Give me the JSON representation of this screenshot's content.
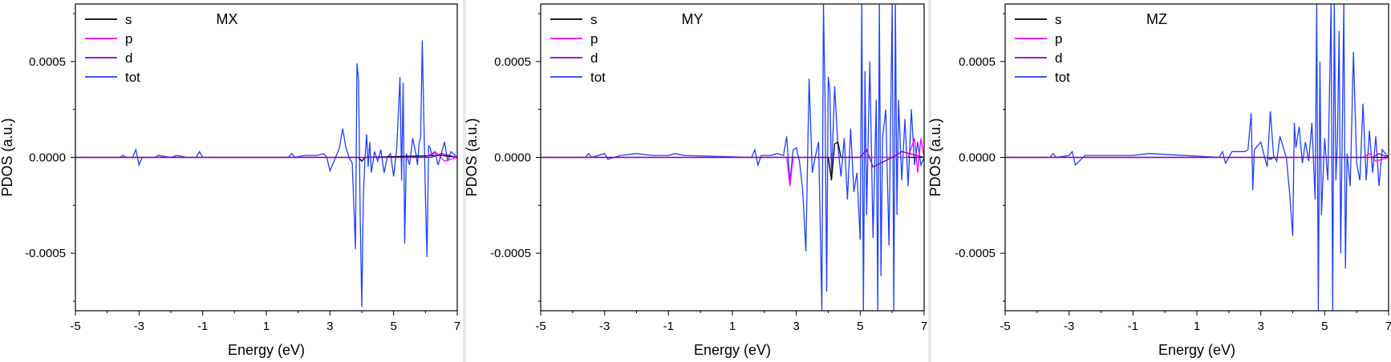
{
  "chart_data": [
    {
      "type": "line",
      "title": "MX",
      "xlabel": "Energy (eV)",
      "ylabel": "PDOS (a.u.)",
      "xlim": [
        -5,
        7
      ],
      "ylim": [
        -0.0008,
        0.0008
      ],
      "xticks": [
        -5,
        -3,
        -1,
        1,
        3,
        5,
        7
      ],
      "xtick_labels": [
        "-5",
        "-3",
        "-1",
        "1",
        "3",
        "5",
        "7"
      ],
      "yticks": [
        0.0005,
        0.0,
        -0.0005
      ],
      "ytick_labels": [
        "0.0005",
        "0.0000",
        "-0.0005"
      ],
      "legend_position": "top-left",
      "series": [
        {
          "name": "s",
          "color": "#000000",
          "x": [
            -5,
            3.9,
            4.0,
            4.1,
            6.5,
            7
          ],
          "y": [
            0,
            0,
            -2e-05,
            0,
            1e-05,
            0
          ]
        },
        {
          "name": "p",
          "color": "#ff00ff",
          "x": [
            -5,
            6.0,
            6.3,
            6.6,
            7
          ],
          "y": [
            0,
            0,
            3e-05,
            -2e-05,
            0
          ]
        },
        {
          "name": "d",
          "color": "#8000c0",
          "x": [
            -5,
            6.2,
            6.5,
            7
          ],
          "y": [
            0,
            0,
            2e-05,
            0
          ]
        },
        {
          "name": "tot",
          "color": "#1f3fff",
          "x": [
            -5,
            -3.6,
            -3.5,
            -3.4,
            -3.2,
            -3.1,
            -3.0,
            -2.9,
            -2.5,
            -2.4,
            -2.0,
            -1.8,
            -1.5,
            -1.2,
            -1.1,
            -1.0,
            -0.9,
            1.7,
            1.8,
            1.9,
            2.2,
            2.4,
            2.6,
            2.8,
            2.9,
            3.0,
            3.2,
            3.3,
            3.4,
            3.5,
            3.6,
            3.7,
            3.8,
            3.85,
            3.9,
            3.95,
            4.0,
            4.05,
            4.1,
            4.15,
            4.2,
            4.25,
            4.3,
            4.4,
            4.5,
            4.6,
            4.7,
            4.8,
            4.9,
            5.0,
            5.1,
            5.2,
            5.25,
            5.3,
            5.35,
            5.4,
            5.5,
            5.6,
            5.7,
            5.75,
            5.8,
            5.85,
            5.9,
            6.0,
            6.05,
            6.1,
            6.15,
            6.2,
            6.3,
            6.4,
            6.5,
            6.6,
            6.7,
            6.8,
            7
          ],
          "y": [
            0,
            0,
            1e-05,
            0,
            0,
            4e-05,
            -4e-05,
            0,
            0,
            1e-05,
            0,
            1e-05,
            0,
            0,
            3e-05,
            0,
            0,
            0,
            2e-05,
            0,
            1e-05,
            1e-05,
            1e-05,
            2e-05,
            0,
            -7e-05,
            1e-05,
            5e-05,
            0.00015,
            5e-05,
            0,
            -3e-05,
            -0.00048,
            0.00049,
            0.0004,
            -0.0003,
            -0.00078,
            -0.0002,
            0,
            0.00012,
            -5e-05,
            8e-05,
            -8e-05,
            3e-05,
            -2e-05,
            4e-05,
            -8e-05,
            0,
            2e-05,
            -0.0001,
            5e-05,
            0.00042,
            -0.00012,
            0.00039,
            -0.00045,
            2e-05,
            -4e-05,
            0.0001,
            2e-05,
            -4e-05,
            7e-05,
            0.00011,
            0.00061,
            -0.0002,
            -0.00052,
            6e-05,
            5e-05,
            1e-05,
            3e-05,
            -4e-05,
            2e-05,
            8e-05,
            -2e-05,
            3e-05,
            0
          ]
        }
      ]
    },
    {
      "type": "line",
      "title": "MY",
      "xlabel": "Energy (eV)",
      "ylabel": "PDOS (a.u.)",
      "xlim": [
        -5,
        7
      ],
      "ylim": [
        -0.0008,
        0.0008
      ],
      "xticks": [
        -5,
        -3,
        -1,
        1,
        3,
        5,
        7
      ],
      "xtick_labels": [
        "-5",
        "-3",
        "-1",
        "1",
        "3",
        "5",
        "7"
      ],
      "yticks": [
        0.0005,
        0.0,
        -0.0005
      ],
      "ytick_labels": [
        "0.0005",
        "0.0000",
        "-0.0005"
      ],
      "legend_position": "top-left",
      "series": [
        {
          "name": "s",
          "color": "#000000",
          "x": [
            -5,
            4.0,
            4.1,
            4.2,
            4.3,
            4.4,
            7
          ],
          "y": [
            0,
            0,
            -0.00012,
            7e-05,
            8e-05,
            0,
            0
          ]
        },
        {
          "name": "p",
          "color": "#ff00ff",
          "x": [
            -5,
            2.7,
            2.8,
            2.9,
            6.5,
            6.7,
            6.8,
            6.9,
            7
          ],
          "y": [
            0,
            0,
            -0.00015,
            0,
            0,
            0.0001,
            -8e-05,
            0.0001,
            0
          ]
        },
        {
          "name": "d",
          "color": "#8000c0",
          "x": [
            -5,
            5.0,
            5.2,
            5.4,
            6.0,
            6.3,
            7
          ],
          "y": [
            0,
            0,
            4e-05,
            -5e-05,
            0,
            3e-05,
            0
          ]
        },
        {
          "name": "tot",
          "color": "#1f3fff",
          "x": [
            -5,
            -3.6,
            -3.5,
            -3.4,
            -3.0,
            -2.9,
            -2.5,
            -2.0,
            -1.5,
            -1.0,
            -0.8,
            -0.5,
            1.6,
            1.7,
            1.8,
            1.9,
            2.2,
            2.4,
            2.6,
            2.7,
            2.8,
            2.9,
            3.0,
            3.1,
            3.2,
            3.3,
            3.4,
            3.5,
            3.6,
            3.7,
            3.8,
            3.85,
            3.9,
            3.95,
            4.0,
            4.05,
            4.1,
            4.2,
            4.3,
            4.4,
            4.5,
            4.6,
            4.7,
            4.8,
            4.9,
            5.0,
            5.05,
            5.1,
            5.15,
            5.2,
            5.3,
            5.4,
            5.5,
            5.55,
            5.6,
            5.65,
            5.7,
            5.8,
            5.9,
            6.0,
            6.05,
            6.1,
            6.15,
            6.2,
            6.3,
            6.4,
            6.5,
            6.6,
            6.7,
            6.8,
            6.9,
            7
          ],
          "y": [
            0,
            0,
            2e-05,
            0,
            2e-05,
            -1e-05,
            1e-05,
            2e-05,
            1e-05,
            1e-05,
            2e-05,
            1e-05,
            0,
            4e-05,
            -4e-05,
            1e-05,
            1e-05,
            2e-05,
            1e-05,
            0.00011,
            -0.00013,
            4e-05,
            5e-05,
            -2e-05,
            -0.00017,
            -0.00049,
            0.00041,
            -8e-05,
            1e-05,
            8e-05,
            -0.0008,
            0.0008,
            0.0003,
            -0.0007,
            0.00042,
            0.00035,
            -0.0001,
            0.00037,
            6e-05,
            -0.0001,
            0.0001,
            -0.00022,
            0.00015,
            -0.00018,
            -8e-05,
            -0.00043,
            0.0008,
            -0.0008,
            0.00045,
            -0.0003,
            0.0005,
            -0.00042,
            0.0003,
            -0.0008,
            0.0008,
            -0.00062,
            0.0001,
            0.00025,
            -0.00046,
            0.0008,
            -0.0008,
            0.0008,
            -0.0003,
            0.0003,
            -0.00012,
            0.0002,
            -0.00015,
            0.00025,
            -4e-05,
            8e-05,
            -4e-05,
            0
          ]
        }
      ]
    },
    {
      "type": "line",
      "title": "MZ",
      "xlabel": "Energy (eV)",
      "ylabel": "PDOS (a.u.)",
      "xlim": [
        -5,
        7
      ],
      "ylim": [
        -0.0008,
        0.0008
      ],
      "xticks": [
        -5,
        -3,
        -1,
        1,
        3,
        5,
        7
      ],
      "xtick_labels": [
        "-5",
        "-3",
        "-1",
        "1",
        "3",
        "5",
        "7"
      ],
      "yticks": [
        0.0005,
        0.0,
        -0.0005
      ],
      "ytick_labels": [
        "0.0005",
        "0.0000",
        "-0.0005"
      ],
      "legend_position": "top-left",
      "series": [
        {
          "name": "s",
          "color": "#000000",
          "x": [
            -5,
            3.2,
            3.3,
            3.4,
            7
          ],
          "y": [
            0,
            0,
            -1e-05,
            0,
            0
          ]
        },
        {
          "name": "p",
          "color": "#ff00ff",
          "x": [
            -5,
            6.2,
            6.4,
            6.6,
            7
          ],
          "y": [
            0,
            0,
            2e-05,
            -2e-05,
            0
          ]
        },
        {
          "name": "d",
          "color": "#8000c0",
          "x": [
            -5,
            6.5,
            6.7,
            7
          ],
          "y": [
            0,
            0,
            2e-05,
            0
          ]
        },
        {
          "name": "tot",
          "color": "#1f3fff",
          "x": [
            -5,
            -3.6,
            -3.5,
            -3.4,
            -3.0,
            -2.9,
            -2.8,
            -2.5,
            -2.0,
            -1.5,
            -1.0,
            -0.5,
            1.7,
            1.8,
            1.9,
            2.1,
            2.3,
            2.5,
            2.6,
            2.7,
            2.75,
            2.8,
            3.0,
            3.2,
            3.3,
            3.4,
            3.5,
            3.6,
            3.8,
            3.9,
            4.0,
            4.05,
            4.1,
            4.2,
            4.3,
            4.4,
            4.5,
            4.6,
            4.7,
            4.75,
            4.8,
            4.85,
            4.9,
            5.0,
            5.1,
            5.2,
            5.25,
            5.3,
            5.35,
            5.4,
            5.45,
            5.5,
            5.6,
            5.65,
            5.7,
            5.8,
            5.9,
            6.0,
            6.1,
            6.2,
            6.3,
            6.4,
            6.5,
            6.6,
            6.7,
            6.8,
            7
          ],
          "y": [
            0,
            0,
            2e-05,
            0,
            1e-05,
            3e-05,
            -4e-05,
            1e-05,
            1e-05,
            1e-05,
            1e-05,
            2e-05,
            0,
            3e-05,
            -3e-05,
            3e-05,
            3e-05,
            3e-05,
            4e-05,
            0.00023,
            -0.00017,
            4e-05,
            8e-05,
            -5e-05,
            0.00024,
            1e-05,
            -2e-05,
            0.00011,
            0,
            -0.00018,
            -0.00041,
            0.00018,
            5e-05,
            0.00016,
            -3e-05,
            8e-05,
            -2e-05,
            0.00018,
            -0.00022,
            0.0008,
            -0.0008,
            0.0005,
            -0.0003,
            0.0001,
            -0.00012,
            0.0008,
            -0.0008,
            0.0008,
            -0.00012,
            0.0001,
            0.00066,
            -0.0005,
            0.0008,
            -0.00058,
            2e-05,
            -0.00015,
            0.00055,
            -3e-05,
            -0.00012,
            0.00028,
            -0.00012,
            0.00014,
            -8e-05,
            0.00011,
            -0.00015,
            4e-05,
            0
          ]
        }
      ]
    }
  ]
}
